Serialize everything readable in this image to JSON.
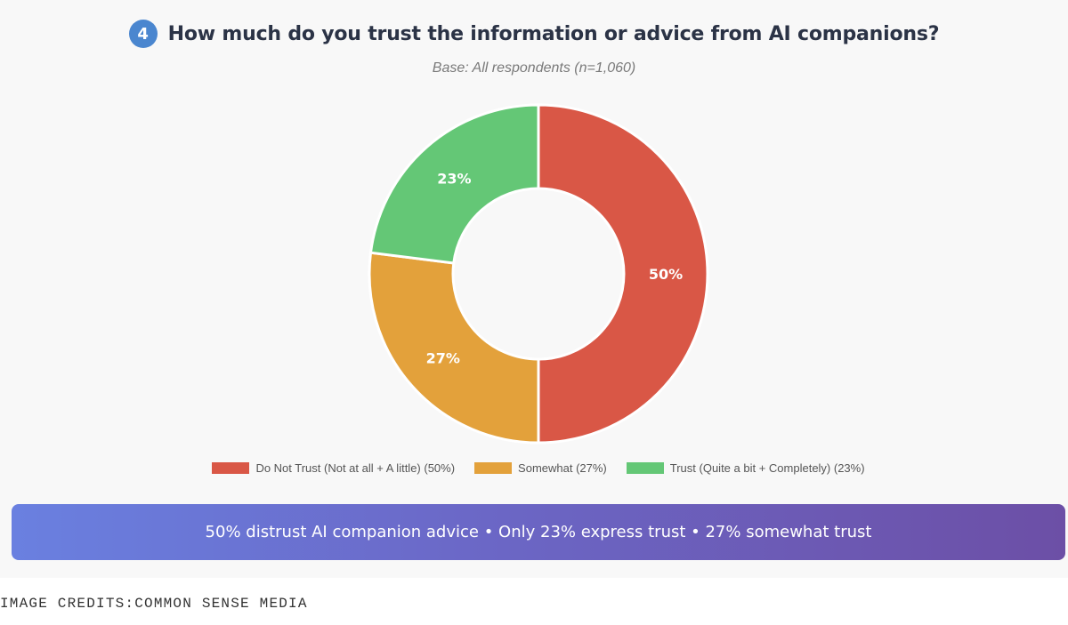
{
  "header": {
    "badge_number": "4",
    "title": "How much do you trust the information or advice from AI companions?",
    "subtitle": "Base: All respondents (n=1,060)"
  },
  "chart_data": {
    "type": "pie",
    "style": "donut",
    "title": "How much do you trust the information or advice from AI companions?",
    "subtitle": "Base: All respondents (n=1,060)",
    "legend_placement": "bottom",
    "slices": [
      {
        "label": "Do Not Trust (Not at all + A little)",
        "value": 50,
        "display": "50%",
        "legend": "Do Not Trust (Not at all + A little) (50%)",
        "color": "#d95746"
      },
      {
        "label": "Somewhat",
        "value": 27,
        "display": "27%",
        "legend": "Somewhat (27%)",
        "color": "#e3a13b"
      },
      {
        "label": "Trust (Quite a bit + Completely)",
        "value": 23,
        "display": "23%",
        "legend": "Trust (Quite a bit + Completely) (23%)",
        "color": "#64c776"
      }
    ]
  },
  "banner": {
    "text": "50% distrust AI companion advice • Only 23% express trust • 27% somewhat trust"
  },
  "credits": {
    "text": "IMAGE CREDITS:COMMON SENSE MEDIA"
  }
}
